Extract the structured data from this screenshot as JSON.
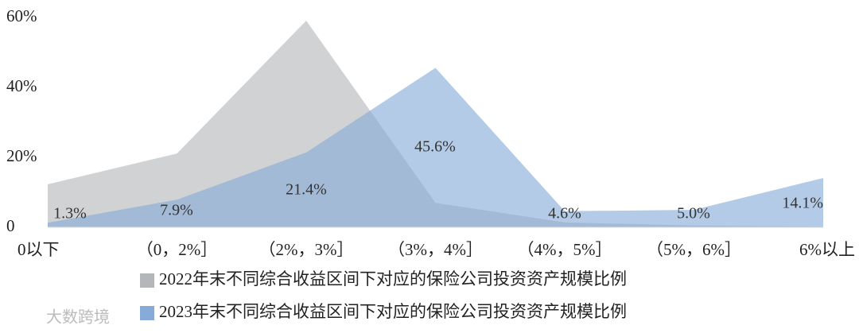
{
  "chart_data": {
    "type": "area",
    "categories": [
      "0以下",
      "（0，2%］",
      "（2%，3%］",
      "（3%，4%］",
      "（4%，5%］",
      "（5%，6%］",
      "6%以上"
    ],
    "series": [
      {
        "name": "2022年末不同综合收益区间下对应的保险公司投资资产规模比例",
        "color": "#b4b6b9",
        "values": [
          12.3,
          21.1,
          59.1,
          7.0,
          1.4,
          0.5,
          0.2
        ]
      },
      {
        "name": "2023年末不同综合收益区间下对应的保险公司投资资产规模比例",
        "color": "#86abd8",
        "values": [
          1.3,
          7.9,
          21.4,
          45.6,
          4.6,
          5.0,
          14.1
        ],
        "value_labels": [
          "1.3%",
          "7.9%",
          "21.4%",
          "45.6%",
          "4.6%",
          "5.0%",
          "14.1%"
        ]
      }
    ],
    "ylim": [
      0,
      60
    ],
    "yticks": [
      0,
      {
        "value": 20,
        "label": "20%"
      },
      {
        "value": 40,
        "label": "40%"
      },
      {
        "value": 60,
        "label": "60%"
      }
    ],
    "watermark": "大数跨境"
  }
}
